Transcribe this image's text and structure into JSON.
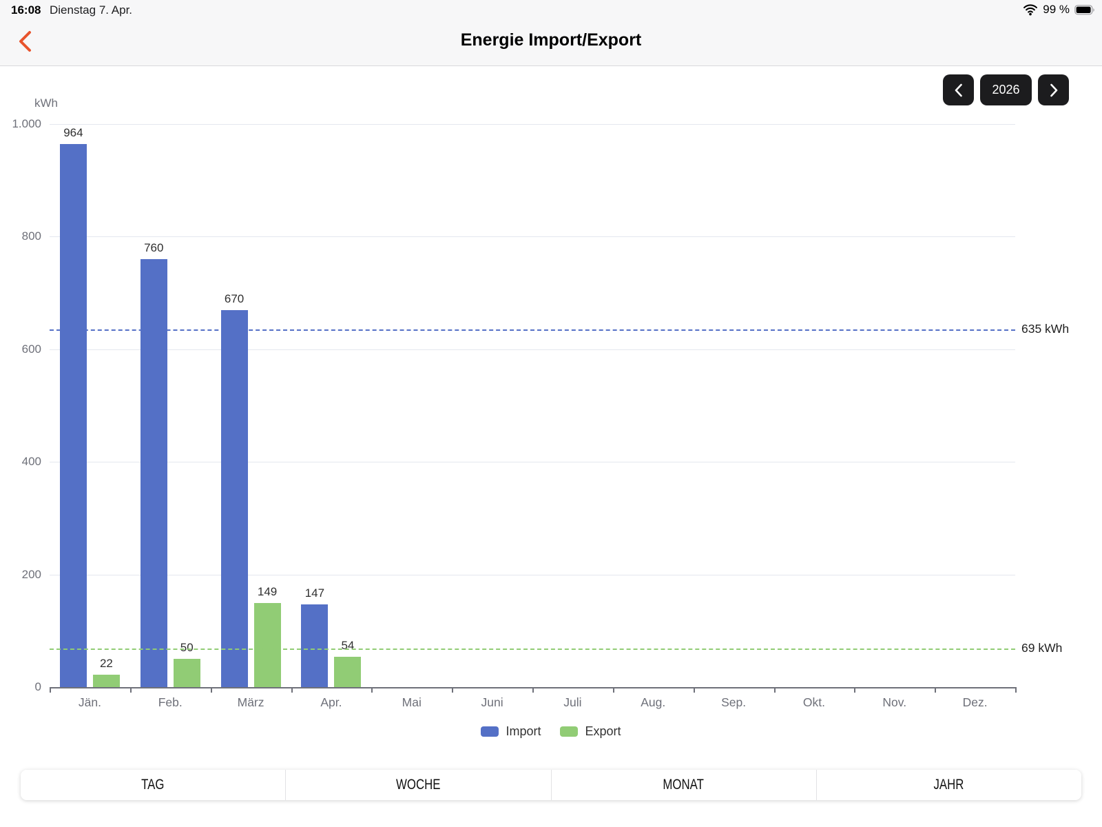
{
  "status_bar": {
    "time": "16:08",
    "date": "Dienstag 7. Apr.",
    "battery_percent": "99 %"
  },
  "header": {
    "title": "Energie Import/Export"
  },
  "year_selector": {
    "year": "2026"
  },
  "chart_data": {
    "type": "bar",
    "title": "Energie Import/Export",
    "ylabel": "kWh",
    "categories": [
      "Jän.",
      "Feb.",
      "März",
      "Apr.",
      "Mai",
      "Juni",
      "Juli",
      "Aug.",
      "Sep.",
      "Okt.",
      "Nov.",
      "Dez."
    ],
    "series": [
      {
        "name": "Import",
        "color": "#5470c6",
        "values": [
          964,
          760,
          670,
          147,
          null,
          null,
          null,
          null,
          null,
          null,
          null,
          null
        ]
      },
      {
        "name": "Export",
        "color": "#91cc75",
        "values": [
          22,
          50,
          149,
          54,
          null,
          null,
          null,
          null,
          null,
          null,
          null,
          null
        ]
      }
    ],
    "average_lines": [
      {
        "series": "Import",
        "value": 635,
        "label": "635 kWh",
        "color": "#5470c6"
      },
      {
        "series": "Export",
        "value": 69,
        "label": "69 kWh",
        "color": "#91cc75"
      }
    ],
    "ylim": [
      0,
      1000
    ],
    "ytick_interval": 200,
    "ytick_labels": [
      "0",
      "200",
      "400",
      "600",
      "800",
      "1.000"
    ],
    "grid": true,
    "legend_position": "bottom"
  },
  "tabs": [
    {
      "label": "TAG"
    },
    {
      "label": "WOCHE"
    },
    {
      "label": "MONAT"
    },
    {
      "label": "JAHR"
    }
  ],
  "colors": {
    "accent_back": "#e8542d",
    "button_dark": "#1c1c1e"
  }
}
